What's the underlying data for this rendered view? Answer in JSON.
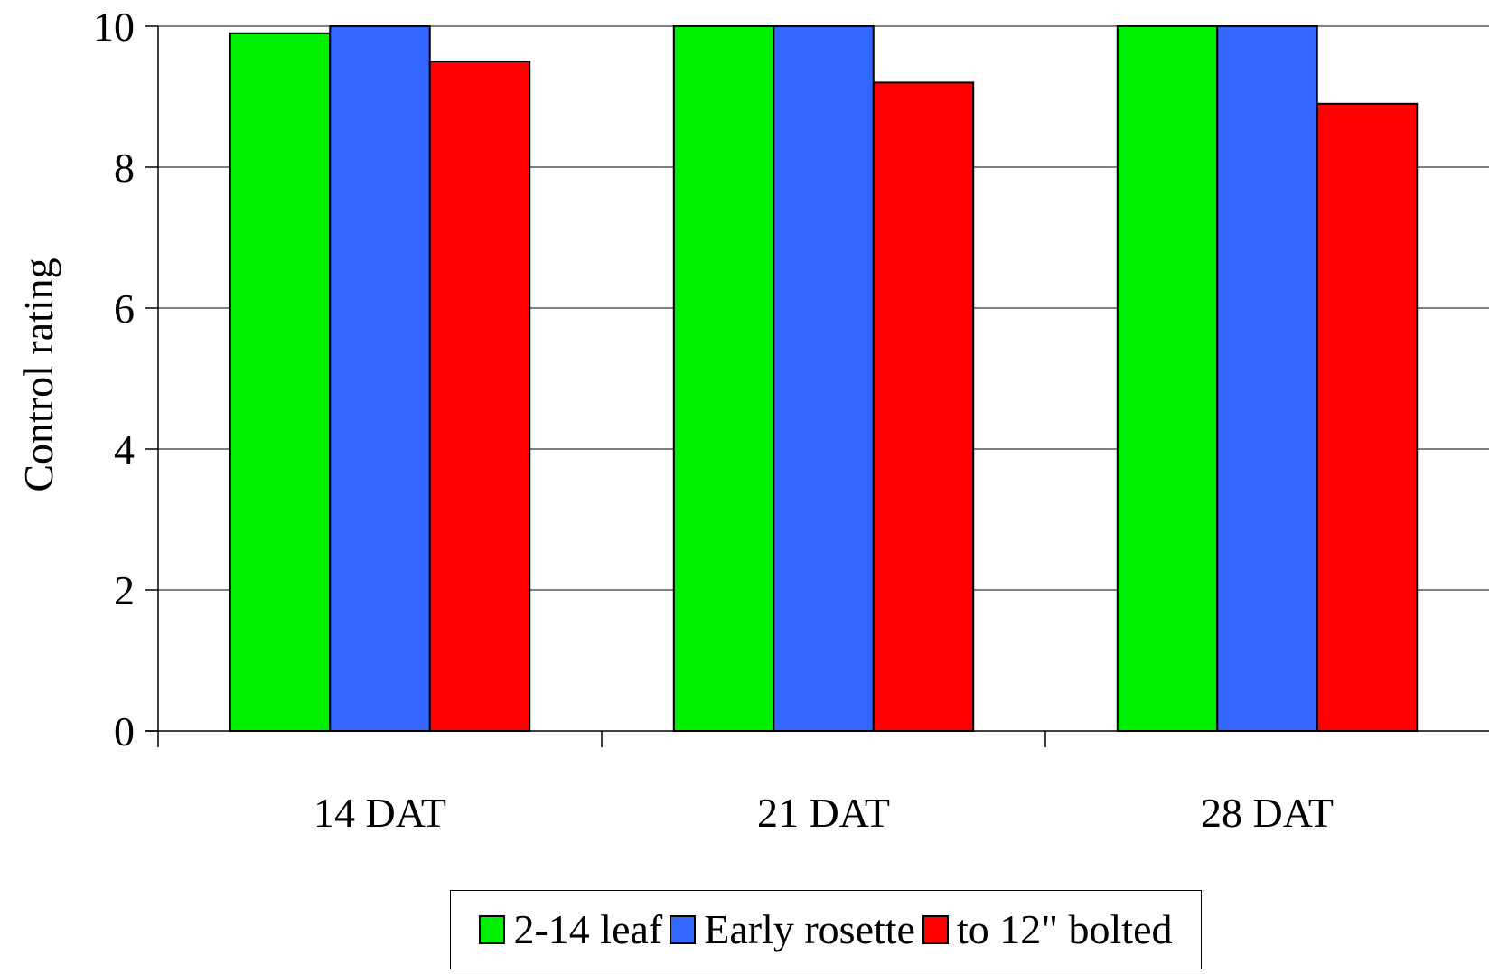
{
  "chart_data": {
    "type": "bar",
    "title": "",
    "xlabel": "",
    "ylabel": "Control rating",
    "ylim": [
      0,
      10
    ],
    "yticks": [
      0,
      2,
      4,
      6,
      8,
      10
    ],
    "ytick_labels": [
      "0",
      "2",
      "4",
      "6",
      "8",
      "10"
    ],
    "categories": [
      "14 DAT",
      "21 DAT",
      "28 DAT"
    ],
    "grid": true,
    "legend_position": "bottom",
    "series": [
      {
        "name": "2-14 leaf",
        "color": "#00ee00",
        "values": [
          9.9,
          10.0,
          10.0
        ]
      },
      {
        "name": "Early rosette",
        "color": "#3366ff",
        "values": [
          10.0,
          10.0,
          10.0
        ]
      },
      {
        "name": "to 12\" bolted",
        "color": "#ff0000",
        "values": [
          9.5,
          9.2,
          8.9
        ]
      }
    ]
  }
}
